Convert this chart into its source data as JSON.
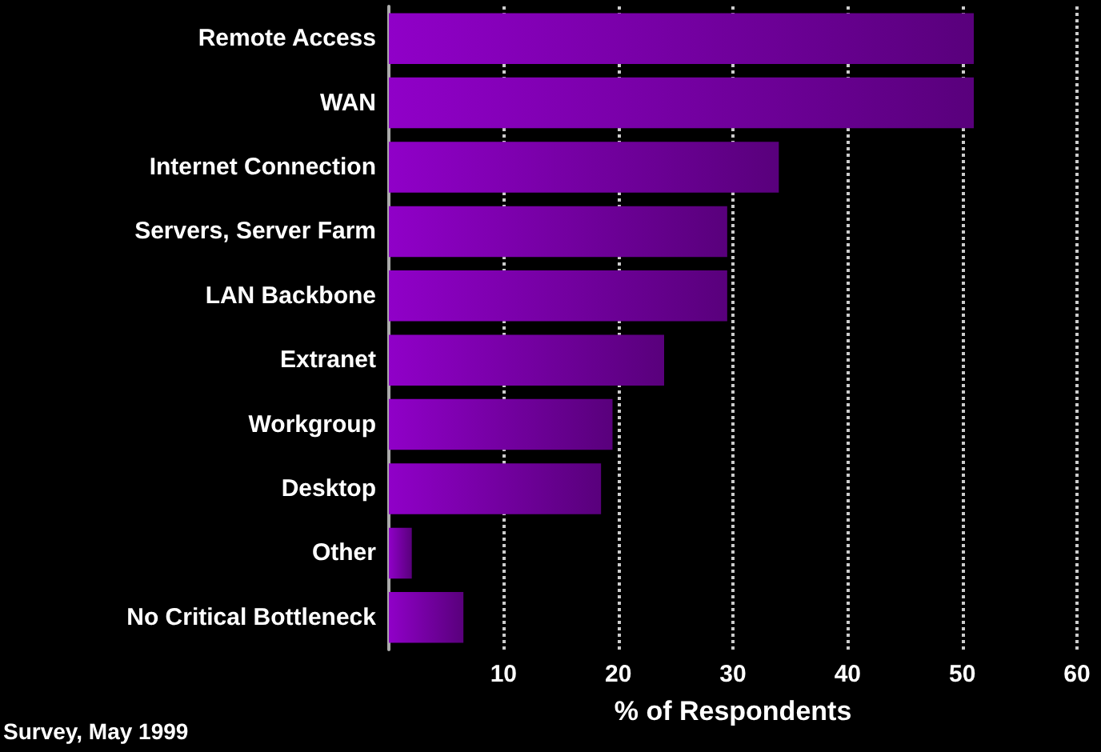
{
  "chart_data": {
    "type": "bar",
    "orientation": "horizontal",
    "categories": [
      "Remote Access",
      "WAN",
      "Internet Connection",
      "Servers, Server Farm",
      "LAN Backbone",
      "Extranet",
      "Workgroup",
      "Desktop",
      "Other",
      "No Critical Bottleneck"
    ],
    "values": [
      51,
      51,
      34,
      29.5,
      29.5,
      24,
      19.5,
      18.5,
      2,
      6.5
    ],
    "color": "#9000c8",
    "xlim": [
      0,
      60
    ],
    "xticks": [
      10,
      20,
      30,
      40,
      50,
      60
    ],
    "xlabel": "% of Respondents",
    "annotations": [
      "Survey, May 1999"
    ],
    "grid": "x",
    "line_style": "dotted"
  }
}
